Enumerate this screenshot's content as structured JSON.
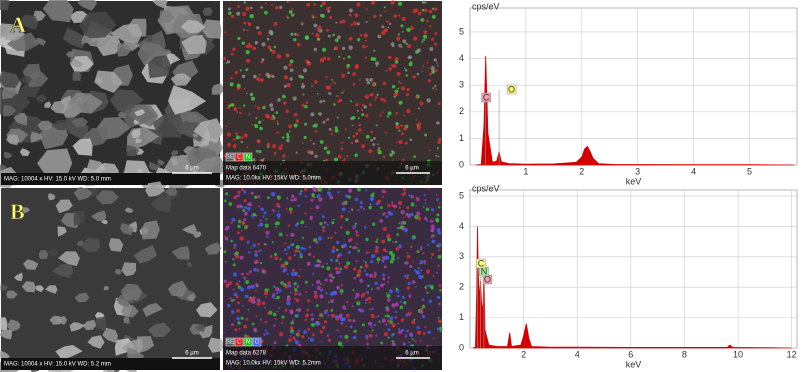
{
  "panels": [
    {
      "label": "A",
      "sem_caption": "MAG: 10004 x  HV: 15.0 kV  WD: 5.0 mm",
      "scale": "6 µm",
      "map_title": "Map data 6470",
      "map_caption": "MAG: 10.0kx  HV: 15kV  WD: 5.0mm",
      "map_scale": "6 µm",
      "map_legend": [
        {
          "name": "SE",
          "color": "#ffffff"
        },
        {
          "name": "C",
          "color": "#e02020"
        },
        {
          "name": "N",
          "color": "#20c020"
        }
      ]
    },
    {
      "label": "B",
      "sem_caption": "MAG: 10004 x  HV: 15.0 kV  WD: 5.2 mm",
      "scale": "6 µm",
      "map_title": "Map data 6278",
      "map_caption": "MAG: 10.0kx  HV: 15kV  WD: 5.2mm",
      "map_scale": "6 µm",
      "map_legend": [
        {
          "name": "SE",
          "color": "#ffffff"
        },
        {
          "name": "C",
          "color": "#e02020"
        },
        {
          "name": "N",
          "color": "#20c020"
        },
        {
          "name": "O",
          "color": "#4060ff"
        }
      ]
    }
  ],
  "chart_data": [
    {
      "type": "area",
      "ylabel": "cps/eV",
      "xlabel": "keV",
      "color": "#d40000",
      "grid": true,
      "xlim": [
        0,
        5.85
      ],
      "xticks": [
        1,
        2,
        3,
        4,
        5
      ],
      "ylim": [
        0,
        5.9
      ],
      "yticks": [
        0,
        1,
        2,
        3,
        4,
        5
      ],
      "x": [
        0.1,
        0.2,
        0.25,
        0.28,
        0.32,
        0.4,
        0.48,
        0.52,
        0.56,
        0.7,
        1.0,
        1.5,
        1.9,
        2.0,
        2.05,
        2.1,
        2.15,
        2.2,
        2.3,
        2.6,
        3.0,
        4.0,
        5.0,
        5.8
      ],
      "values": [
        0,
        0.02,
        1.5,
        4.1,
        1.2,
        0.1,
        0.15,
        0.5,
        0.12,
        0.05,
        0.03,
        0.04,
        0.1,
        0.3,
        0.6,
        0.7,
        0.5,
        0.25,
        0.05,
        0.02,
        0.02,
        0.01,
        0.01,
        0
      ],
      "annotations": [
        {
          "text": "C",
          "x": 0.28,
          "color": "#f0a0b0"
        },
        {
          "text": "O",
          "x": 0.52,
          "color": "#ffff80"
        }
      ]
    },
    {
      "type": "area",
      "ylabel": "cps/eV",
      "xlabel": "keV",
      "color": "#d40000",
      "grid": true,
      "xlim": [
        0,
        12.2
      ],
      "xticks": [
        2,
        4,
        6,
        8,
        10,
        12
      ],
      "ylim": [
        0,
        5.2
      ],
      "yticks": [
        0,
        1,
        2,
        3,
        4,
        5
      ],
      "x": [
        0.1,
        0.2,
        0.25,
        0.28,
        0.31,
        0.35,
        0.39,
        0.43,
        0.48,
        0.52,
        0.56,
        0.7,
        1.0,
        1.4,
        1.48,
        1.55,
        1.9,
        2.0,
        2.1,
        2.2,
        2.3,
        3.0,
        4.0,
        6.0,
        8.0,
        9.6,
        9.7,
        9.8,
        11,
        12
      ],
      "values": [
        0,
        0.02,
        1.8,
        4.0,
        2.5,
        1.6,
        2.2,
        1.5,
        1.2,
        2.6,
        0.6,
        0.1,
        0.05,
        0.05,
        0.5,
        0.05,
        0.1,
        0.4,
        0.8,
        0.3,
        0.05,
        0.03,
        0.03,
        0.02,
        0.02,
        0.02,
        0.1,
        0.02,
        0.01,
        0
      ],
      "annotations": [
        {
          "text": "O",
          "x": 0.52,
          "color": "#f0a0b0"
        },
        {
          "text": "N",
          "x": 0.39,
          "color": "#a0f0a0"
        },
        {
          "text": "C",
          "x": 0.28,
          "color": "#ffff80"
        }
      ]
    }
  ]
}
